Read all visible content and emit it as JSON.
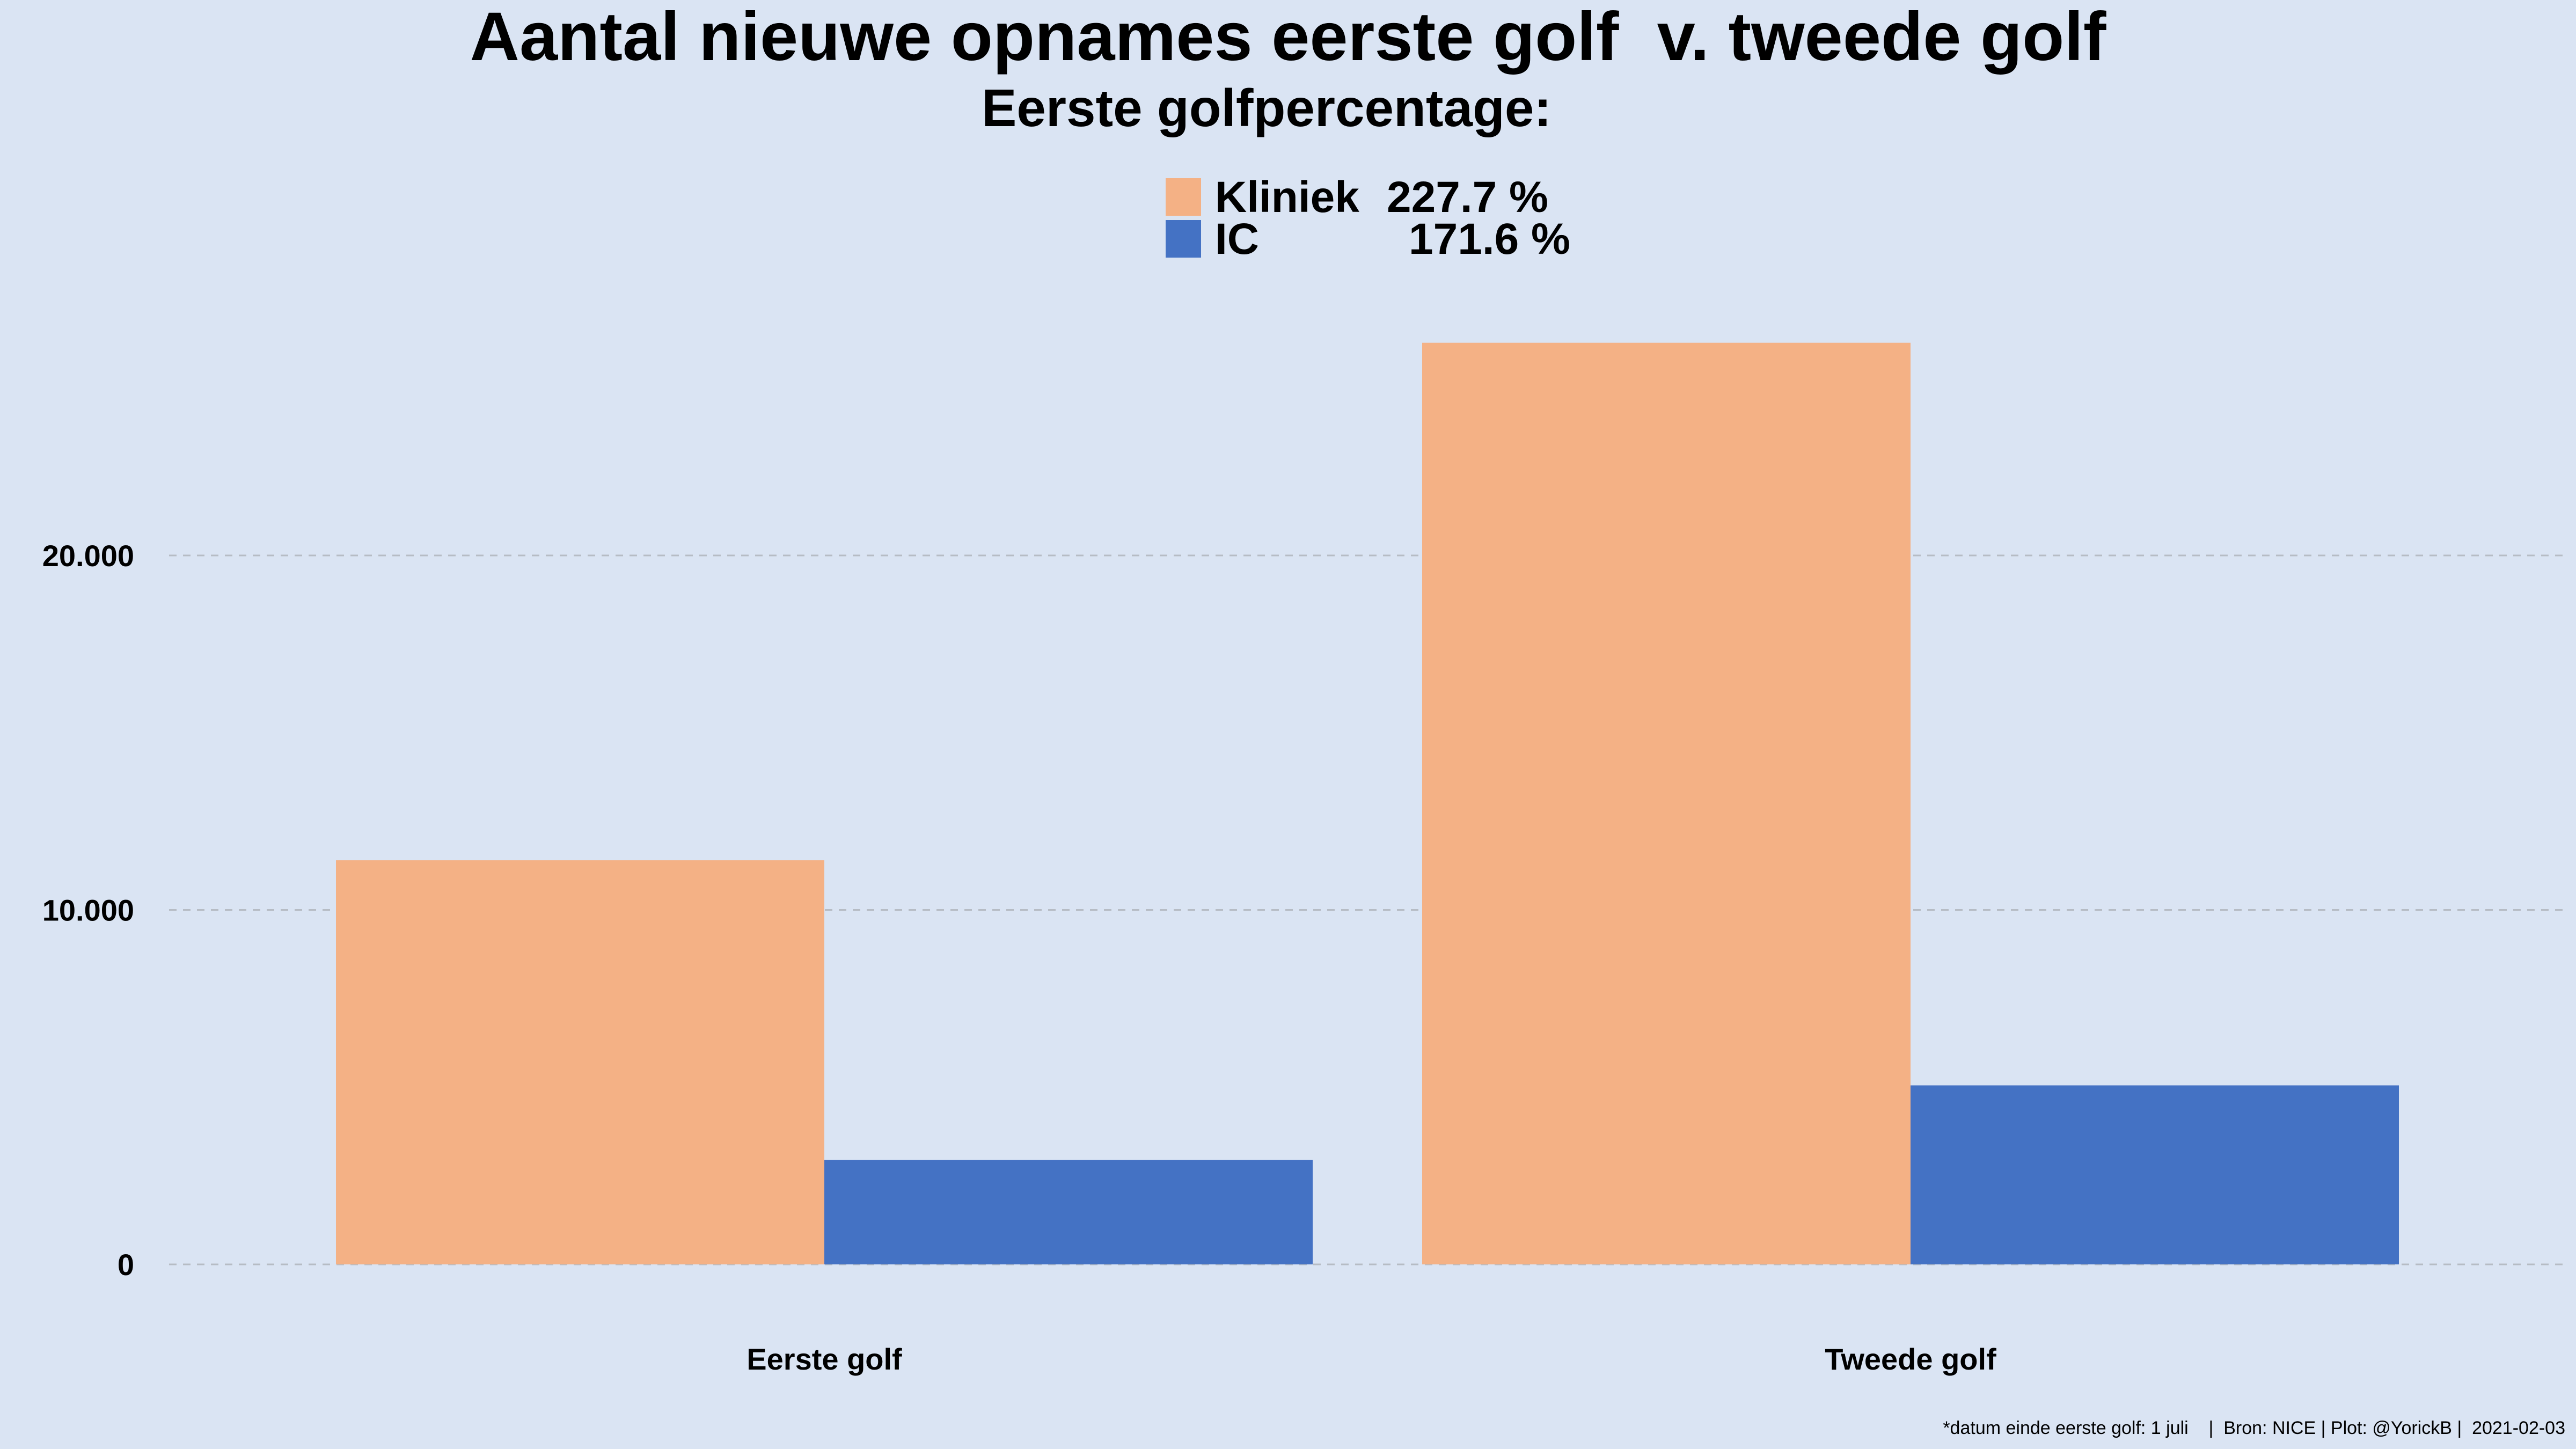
{
  "colors": {
    "background": "#dae4f3",
    "kliniek": "#f4b185",
    "ic": "#4472c4",
    "grid": "#b6bcc4"
  },
  "chart_data": {
    "type": "bar",
    "title": "Aantal nieuwe opnames eerste golf  v. tweede golf",
    "subtitle": "Eerste golfpercentage:",
    "categories": [
      "Eerste golf",
      "Tweede golf"
    ],
    "series": [
      {
        "name": "Kliniek",
        "legend_value": "227.7 %",
        "color": "#f4b185",
        "values": [
          11400,
          26000
        ]
      },
      {
        "name": "IC",
        "legend_value": "171.6 %",
        "color": "#4472c4",
        "values": [
          2950,
          5050
        ]
      }
    ],
    "yticks": [
      {
        "value": 0,
        "label": "0"
      },
      {
        "value": 10000,
        "label": "10.000"
      },
      {
        "value": 20000,
        "label": "20.000"
      }
    ],
    "ylim": [
      0,
      27000
    ],
    "grid": true,
    "legend_position": "top-center",
    "caption": "*datum einde eerste golf: 1 juli    |  Bron: NICE | Plot: @YorickB |  2021-02-03"
  }
}
